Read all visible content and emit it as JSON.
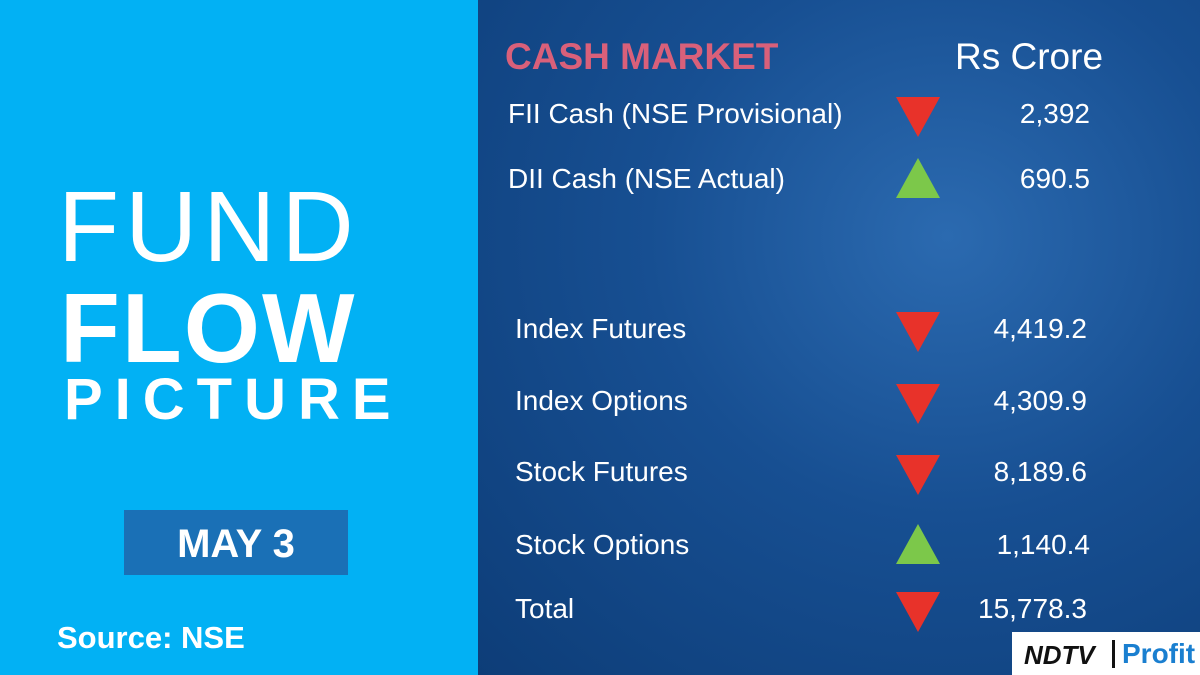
{
  "left_panel": {
    "title_line_1": "FUND",
    "title_line_2": "FLOW",
    "title_line_3": "PICTURE",
    "date": "MAY 3",
    "source": "Source: NSE"
  },
  "table": {
    "header": "CASH MARKET",
    "unit": "Rs Crore",
    "rows": [
      {
        "label": "FII Cash (NSE Provisional)",
        "direction": "down",
        "value": "2,392"
      },
      {
        "label": "DII Cash (NSE Actual)",
        "direction": "up",
        "value": "690.5"
      },
      {
        "label": "Index Futures",
        "direction": "down",
        "value": "4,419.2"
      },
      {
        "label": "Index Options",
        "direction": "down",
        "value": "4,309.9"
      },
      {
        "label": "Stock Futures",
        "direction": "down",
        "value": "8,189.6"
      },
      {
        "label": "Stock Options",
        "direction": "up",
        "value": "1,140.4"
      },
      {
        "label": "Total",
        "direction": "down",
        "value": "15,778.3"
      }
    ]
  },
  "logo": {
    "brand": "NDTV",
    "product": "Profit"
  }
}
